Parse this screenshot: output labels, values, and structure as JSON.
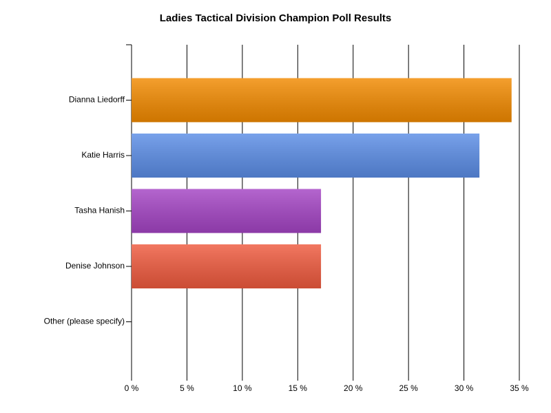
{
  "chart_data": {
    "type": "bar",
    "orientation": "horizontal",
    "title": "Ladies Tactical Division Champion Poll Results",
    "categories": [
      "Dianna Liedorff",
      "Katie Harris",
      "Tasha Hanish",
      "Denise Johnson",
      "Other (please specify)"
    ],
    "values": [
      34.3,
      31.4,
      17.1,
      17.1,
      0
    ],
    "colors": [
      "#f28a00",
      "#5b8de6",
      "#a444c4",
      "#ef5a3e",
      "#999999"
    ],
    "xlim": [
      0,
      35
    ],
    "xticks": [
      {
        "value": 0,
        "label": "0 %"
      },
      {
        "value": 5,
        "label": "5 %"
      },
      {
        "value": 10,
        "label": "10 %"
      },
      {
        "value": 15,
        "label": "15 %"
      },
      {
        "value": 20,
        "label": "20 %"
      },
      {
        "value": 25,
        "label": "25 %"
      },
      {
        "value": 30,
        "label": "30 %"
      },
      {
        "value": 35,
        "label": "35 %"
      }
    ],
    "grid": true
  }
}
